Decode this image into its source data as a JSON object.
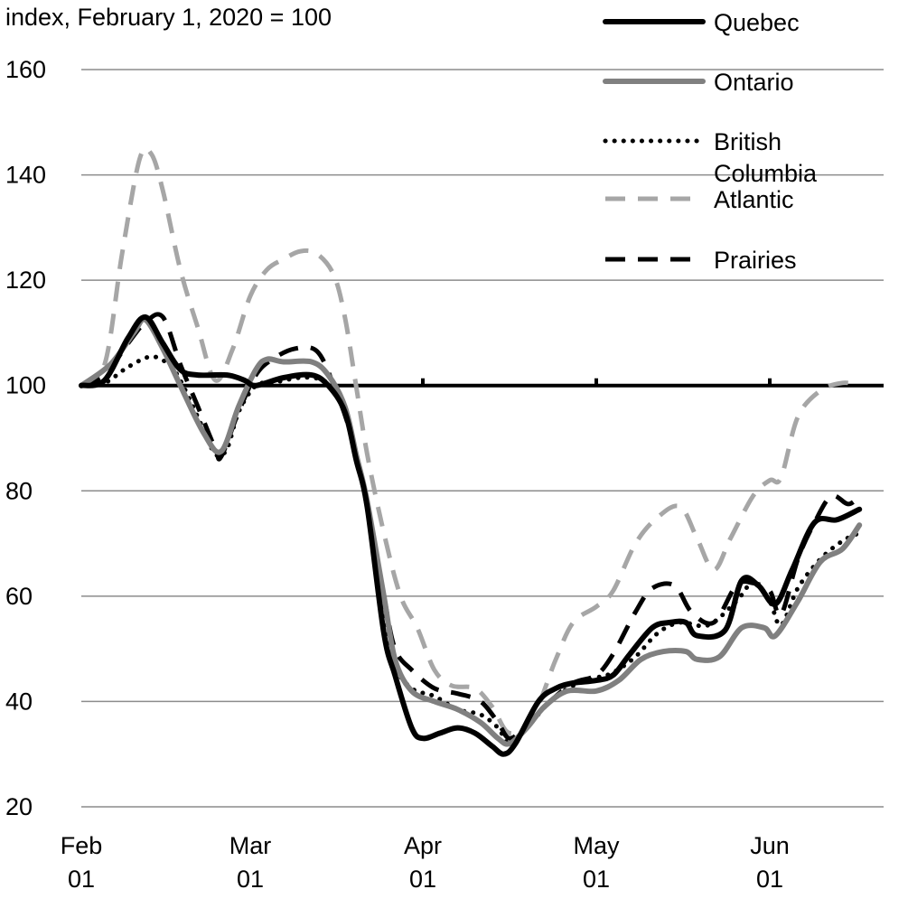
{
  "chart_data": {
    "type": "line",
    "title": "",
    "ylabel": "index, February 1, 2020 = 100",
    "xlabel": "",
    "ylim": [
      20,
      160
    ],
    "yticks": [
      20,
      40,
      60,
      80,
      100,
      120,
      140,
      160
    ],
    "x_unit": "days since Feb 01 2020",
    "xticks": [
      {
        "day": 0,
        "label1": "Feb",
        "label2": "01"
      },
      {
        "day": 29,
        "label1": "Mar",
        "label2": "01"
      },
      {
        "day": 60,
        "label1": "Apr",
        "label2": "01"
      },
      {
        "day": 90,
        "label1": "May",
        "label2": "01"
      },
      {
        "day": 121,
        "label1": "Jun",
        "label2": "01"
      }
    ],
    "grid": true,
    "reference_line": 100,
    "legend_position": "top-right",
    "series": [
      {
        "name": "Quebec",
        "style": "solid-thick",
        "color": "#000000",
        "x": [
          0,
          4,
          8,
          11,
          14,
          17,
          20,
          25,
          28,
          30,
          35,
          40,
          43,
          46,
          48,
          50,
          53,
          55,
          58,
          60,
          63,
          66,
          69,
          72,
          74,
          76,
          80,
          83,
          86,
          90,
          93,
          96,
          100,
          103,
          106,
          108,
          113,
          116,
          119,
          122,
          125,
          129,
          133,
          137
        ],
        "y": [
          100,
          101,
          109,
          113,
          108,
          103,
          102,
          102,
          101,
          100,
          101.5,
          102,
          100,
          95,
          86,
          77,
          53,
          45,
          35,
          33,
          34,
          35,
          34,
          31.5,
          30,
          32,
          40,
          42.5,
          43.5,
          44,
          45,
          49,
          54,
          55,
          55,
          52.5,
          53.5,
          63,
          62,
          58.5,
          65,
          74,
          74.5,
          76.5
        ]
      },
      {
        "name": "Ontario",
        "style": "solid-thick",
        "color": "#808080",
        "x": [
          0,
          5,
          9,
          11,
          14,
          17,
          21,
          24,
          27,
          30,
          32,
          35,
          40,
          43,
          46,
          48,
          50,
          53,
          55,
          58,
          62,
          66,
          70,
          73,
          75,
          78,
          81,
          85,
          90,
          94,
          98,
          102,
          106,
          108,
          112,
          116,
          120,
          122,
          126,
          130,
          134,
          137
        ],
        "y": [
          100,
          104,
          110,
          112.5,
          107,
          100,
          91,
          87.5,
          96,
          103,
          105,
          104.5,
          104.5,
          102,
          96,
          87,
          78,
          60,
          48,
          42,
          40,
          38.5,
          36,
          33,
          32,
          35,
          39,
          42,
          42,
          44,
          48,
          49.5,
          49.5,
          48,
          48.5,
          54,
          54,
          52.5,
          59,
          66.5,
          69,
          73.5
        ]
      },
      {
        "name": "British Columbia",
        "style": "dotted",
        "color": "#000000",
        "x": [
          0,
          4,
          8,
          12,
          15,
          17,
          20,
          23,
          25,
          27,
          30,
          33,
          38,
          42,
          45,
          48,
          50,
          53,
          55,
          58,
          62,
          66,
          70,
          73,
          75,
          78,
          82,
          86,
          90,
          93,
          97,
          101,
          105,
          110,
          115,
          118,
          121,
          123,
          126,
          130,
          134,
          137
        ],
        "y": [
          100,
          100.5,
          103.5,
          105.5,
          104,
          101,
          94,
          87,
          88,
          95,
          100,
          100.5,
          101.5,
          101,
          98,
          87,
          77,
          58,
          47,
          42.5,
          41,
          38.5,
          37.5,
          35,
          32,
          35,
          40,
          43,
          44.5,
          45.5,
          48.5,
          53,
          55,
          54.5,
          59,
          62.5,
          59,
          54.5,
          61.5,
          67,
          70.5,
          72
        ]
      },
      {
        "name": "Atlantic",
        "style": "dashed-light",
        "color": "#a6a6a6",
        "x": [
          0,
          4,
          7,
          10,
          12,
          14,
          17,
          20,
          23,
          26,
          29,
          32,
          35,
          38,
          41,
          44,
          46,
          48,
          50,
          53,
          56,
          59,
          62,
          65,
          69,
          72,
          75,
          79,
          83,
          86,
          90,
          93,
          97,
          101,
          105,
          108,
          111,
          114,
          118,
          121,
          123,
          126,
          130,
          134,
          137
        ],
        "y": [
          100,
          104,
          125,
          143,
          144,
          137,
          122,
          111,
          101,
          107,
          117,
          122,
          124,
          125.5,
          125,
          121,
          113,
          100,
          87,
          72,
          60,
          54,
          46,
          43,
          42.5,
          39,
          34,
          37,
          48,
          55,
          58,
          61,
          70,
          75,
          77,
          71,
          65,
          71,
          79,
          82,
          82.5,
          94,
          99,
          100.5,
          100
        ]
      },
      {
        "name": "Prairies",
        "style": "dashed",
        "color": "#000000",
        "x": [
          0,
          4,
          8,
          11,
          14,
          17,
          20,
          23,
          24,
          27,
          30,
          33,
          37,
          41,
          44,
          47,
          50,
          53,
          55,
          58,
          62,
          66,
          70,
          73,
          75,
          78,
          82,
          86,
          90,
          93,
          97,
          100,
          104,
          107,
          111,
          115,
          118,
          121,
          123,
          126,
          129,
          132,
          135,
          137
        ],
        "y": [
          100,
          102,
          108,
          112,
          113,
          104,
          96,
          88,
          86.5,
          95,
          102,
          105,
          107,
          106.5,
          100,
          91,
          77,
          60,
          50,
          46,
          42.5,
          41.5,
          40,
          36,
          33,
          35.5,
          40,
          43.5,
          45,
          49,
          57,
          61.5,
          62,
          57,
          55,
          62,
          62.5,
          61,
          56.5,
          67,
          74,
          79,
          77.5,
          79
        ]
      }
    ]
  }
}
